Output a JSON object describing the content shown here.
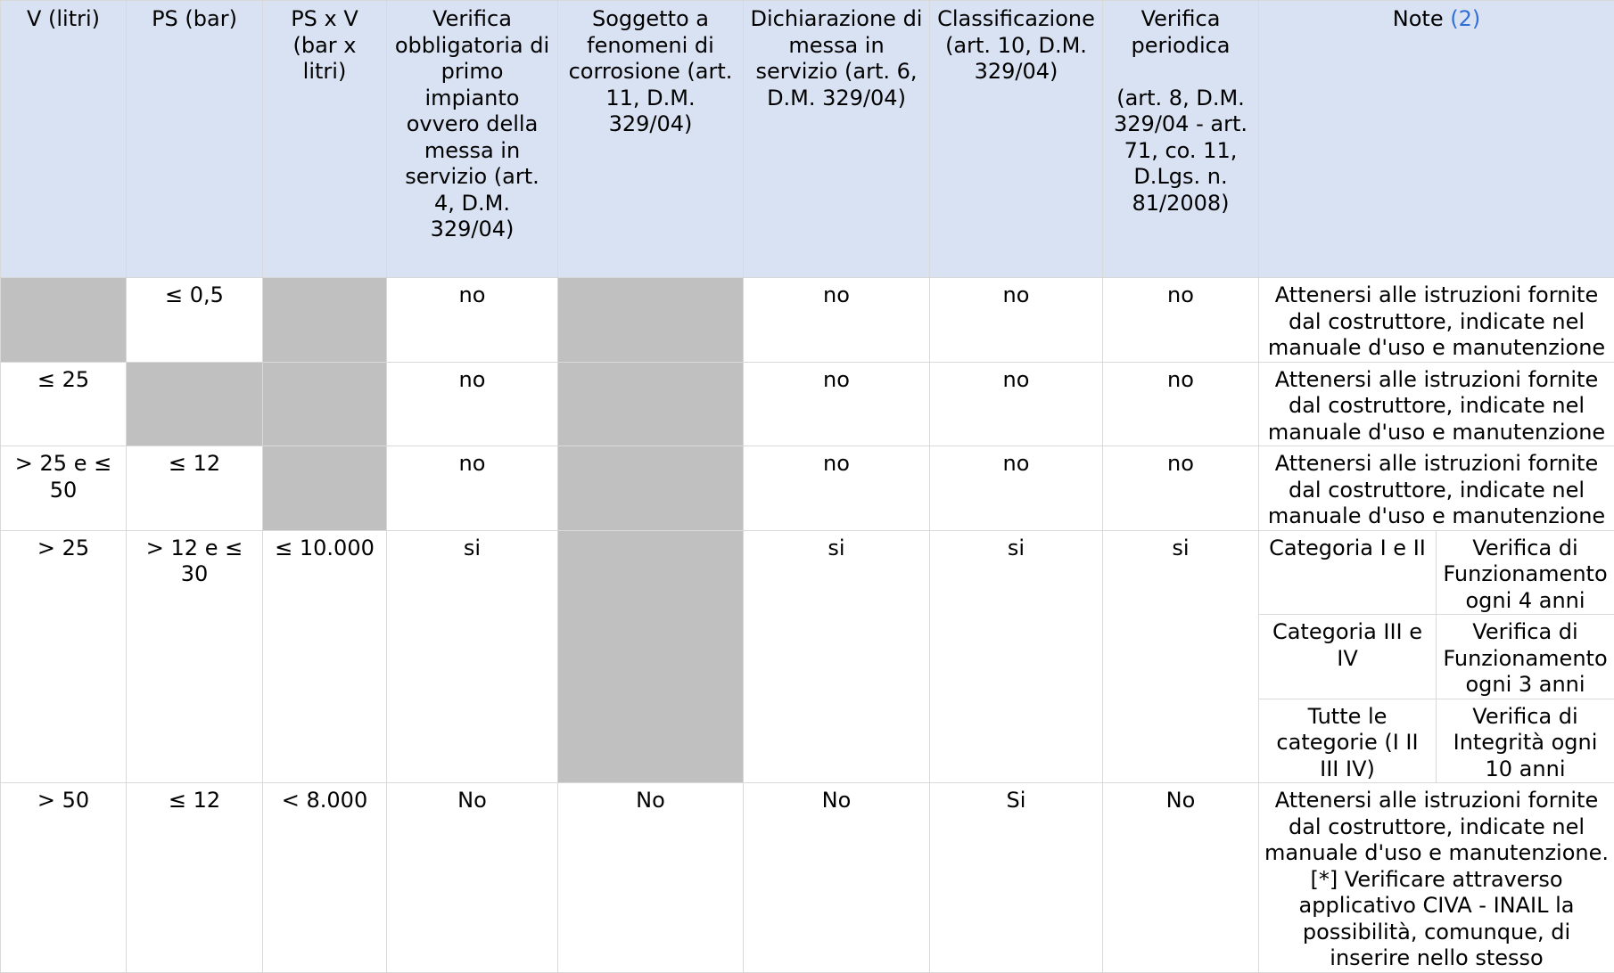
{
  "headers": {
    "v_litri": "V (litri)",
    "ps_bar": "PS (bar)",
    "ps_x_v": "PS x V (bar x litri)",
    "verifica_obbligatoria": "Verifica obbligatoria di primo impianto ovvero della messa in servizio (art. 4, D.M. 329/04)",
    "soggetto_corrosione": "Soggetto a fenomeni di corrosione (art. 11, D.M. 329/04)",
    "dichiarazione": "Dichiarazione di messa in servizio (art. 6, D.M. 329/04)",
    "classificazione": "Classificazione (art. 10, D.M. 329/04)",
    "verifica_periodica_title": "Verifica periodica",
    "verifica_periodica_ref": "(art. 8, D.M. 329/04 - art. 71, co. 11, D.Lgs. n. 81/2008)",
    "note_label": "Note",
    "note_ref": "(2)"
  },
  "rows": [
    {
      "v": "",
      "ps": "≤ 0,5",
      "psv": "",
      "verifica": "no",
      "corrosione": "",
      "dichiarazione": "no",
      "classificazione": "no",
      "periodica": "no",
      "note": "Attenersi alle istruzioni fornite dal costruttore, indicate nel manuale d'uso e manutenzione"
    },
    {
      "v": "≤ 25",
      "ps": "",
      "psv": "",
      "verifica": "no",
      "corrosione": "",
      "dichiarazione": "no",
      "classificazione": "no",
      "periodica": "no",
      "note": "Attenersi alle istruzioni fornite dal costruttore, indicate nel manuale d'uso e manutenzione"
    },
    {
      "v": "> 25 e ≤ 50",
      "ps": "≤ 12",
      "psv": "",
      "verifica": "no",
      "corrosione": "",
      "dichiarazione": "no",
      "classificazione": "no",
      "periodica": "no",
      "note": "Attenersi alle istruzioni fornite dal costruttore, indicate nel manuale d'uso e manutenzione"
    },
    {
      "v": "> 25",
      "ps": "> 12 e ≤ 30",
      "psv": "≤ 10.000",
      "verifica": "si",
      "corrosione": "",
      "dichiarazione": "si",
      "classificazione": "si",
      "periodica": "si",
      "sub_notes": [
        {
          "categoria": "Categoria I e II",
          "verifica": "Verifica di Funzionamento ogni 4 anni"
        },
        {
          "categoria": "Categoria III e IV",
          "verifica": "Verifica di Funzionamento ogni 3 anni"
        },
        {
          "categoria": "Tutte le categorie (I II III IV)",
          "verifica": "Verifica di Integrità ogni 10 anni"
        }
      ]
    },
    {
      "v": "> 50",
      "ps": "≤ 12",
      "psv": "< 8.000",
      "verifica": "No",
      "corrosione": "No",
      "dichiarazione": "No",
      "classificazione": "Si",
      "periodica": "No",
      "note": "Attenersi alle istruzioni fornite dal costruttore, indicate nel manuale d'uso e manutenzione. [*] Verificare attraverso applicativo CIVA - INAIL la possibilità, comunque, di inserire nello stesso"
    }
  ],
  "colors": {
    "header_bg": "#d9e2f2",
    "empty_cell_bg": "#c0c0c0",
    "link": "#2f6fd6",
    "grid": "#d9d9d9"
  }
}
